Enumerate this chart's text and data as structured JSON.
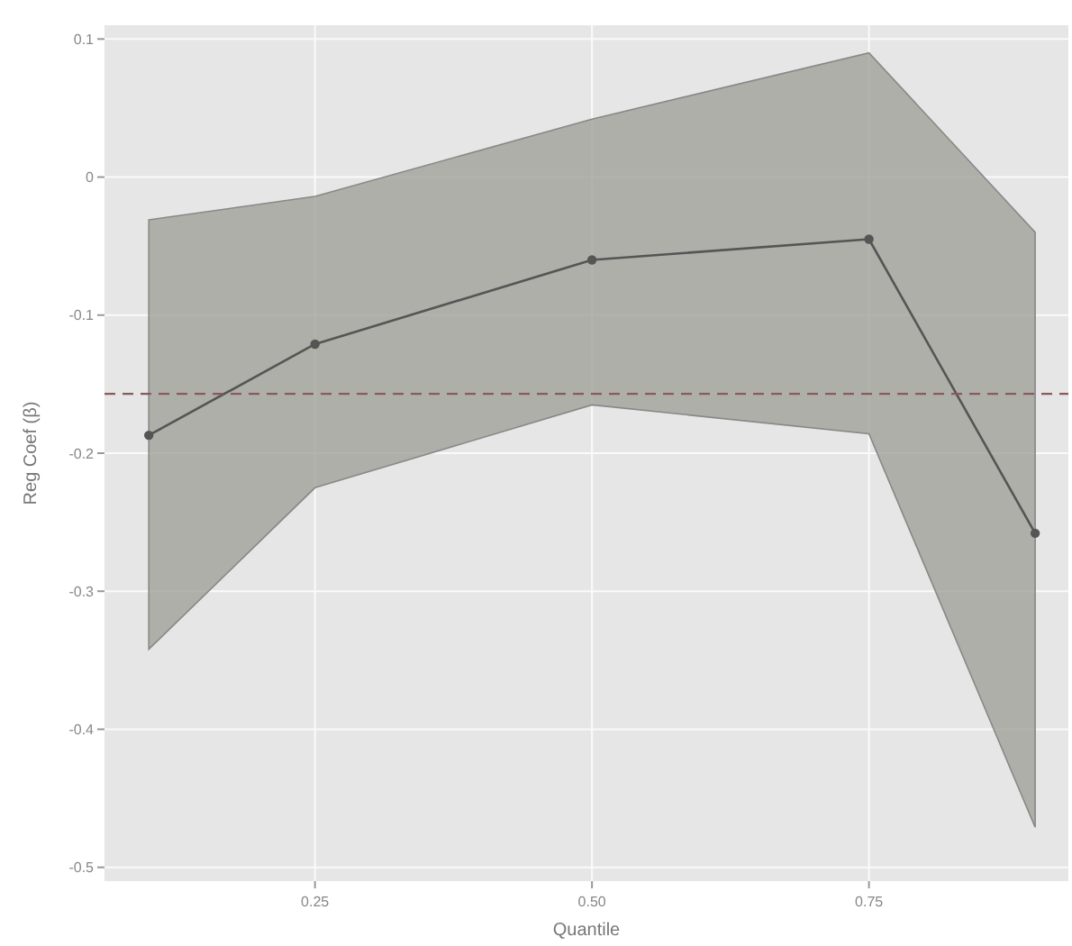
{
  "chart_data": {
    "type": "line",
    "xlabel": "Quantile",
    "ylabel": "Reg Coef (β)",
    "x": [
      0.1,
      0.25,
      0.5,
      0.75,
      0.9
    ],
    "series": [
      {
        "color": "#555555",
        "values": [
          -0.187,
          -0.121,
          -0.06,
          -0.045,
          -0.258
        ],
        "lower": [
          -0.342,
          -0.225,
          -0.165,
          -0.186,
          -0.471
        ],
        "upper": [
          -0.031,
          -0.014,
          0.042,
          0.09,
          -0.04
        ]
      }
    ],
    "xlim": [
      0.06,
      0.93
    ],
    "xticks": [
      {
        "value": 0.25,
        "label": "0.25"
      },
      {
        "value": 0.5,
        "label": "0.50"
      },
      {
        "value": 0.75,
        "label": "0.75"
      }
    ],
    "ylim": [
      -0.51,
      0.11
    ],
    "yticks": [
      0.1,
      0,
      -0.1,
      -0.2,
      -0.3,
      -0.4,
      -0.5
    ],
    "ref_lines": [
      {
        "axis": "y",
        "value": -0.157,
        "color": "#8a5a5a",
        "line_style": "dashed"
      }
    ],
    "grid": true,
    "marker": "circle",
    "line_style": "solid"
  }
}
